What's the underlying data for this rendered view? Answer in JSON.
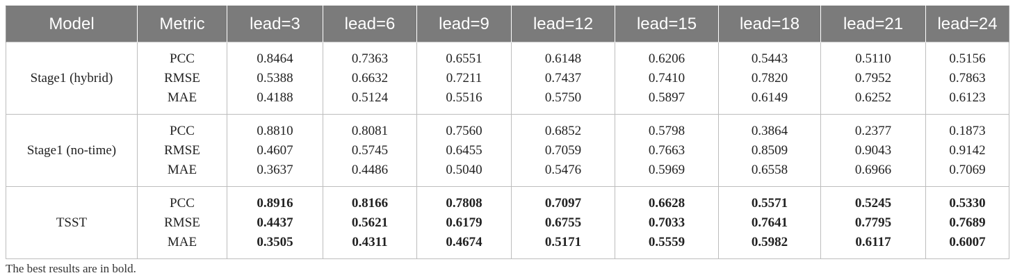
{
  "table": {
    "headers": [
      "Model",
      "Metric",
      "lead=3",
      "lead=6",
      "lead=9",
      "lead=12",
      "lead=15",
      "lead=18",
      "lead=21",
      "lead=24"
    ],
    "metrics": [
      "PCC",
      "RMSE",
      "MAE"
    ],
    "rows": [
      {
        "model": "Stage1 (hybrid)",
        "bold": false,
        "values": [
          [
            "0.8464",
            "0.5388",
            "0.4188"
          ],
          [
            "0.7363",
            "0.6632",
            "0.5124"
          ],
          [
            "0.6551",
            "0.7211",
            "0.5516"
          ],
          [
            "0.6148",
            "0.7437",
            "0.5750"
          ],
          [
            "0.6206",
            "0.7410",
            "0.5897"
          ],
          [
            "0.5443",
            "0.7820",
            "0.6149"
          ],
          [
            "0.5110",
            "0.7952",
            "0.6252"
          ],
          [
            "0.5156",
            "0.7863",
            "0.6123"
          ]
        ]
      },
      {
        "model": "Stage1 (no-time)",
        "bold": false,
        "values": [
          [
            "0.8810",
            "0.4607",
            "0.3637"
          ],
          [
            "0.8081",
            "0.5745",
            "0.4486"
          ],
          [
            "0.7560",
            "0.6455",
            "0.5040"
          ],
          [
            "0.6852",
            "0.7059",
            "0.5476"
          ],
          [
            "0.5798",
            "0.7663",
            "0.5969"
          ],
          [
            "0.3864",
            "0.8509",
            "0.6558"
          ],
          [
            "0.2377",
            "0.9043",
            "0.6966"
          ],
          [
            "0.1873",
            "0.9142",
            "0.7069"
          ]
        ]
      },
      {
        "model": "TSST",
        "bold": true,
        "values": [
          [
            "0.8916",
            "0.4437",
            "0.3505"
          ],
          [
            "0.8166",
            "0.5621",
            "0.4311"
          ],
          [
            "0.7808",
            "0.6179",
            "0.4674"
          ],
          [
            "0.7097",
            "0.6755",
            "0.5171"
          ],
          [
            "0.6628",
            "0.7033",
            "0.5559"
          ],
          [
            "0.5571",
            "0.7641",
            "0.5982"
          ],
          [
            "0.5245",
            "0.7795",
            "0.6117"
          ],
          [
            "0.5330",
            "0.7689",
            "0.6007"
          ]
        ]
      }
    ],
    "footnote": "The best results are in bold.",
    "colors": {
      "header_bg": "#7b7b7b",
      "header_text": "#ffffff",
      "border": "#bdbdbd"
    }
  }
}
